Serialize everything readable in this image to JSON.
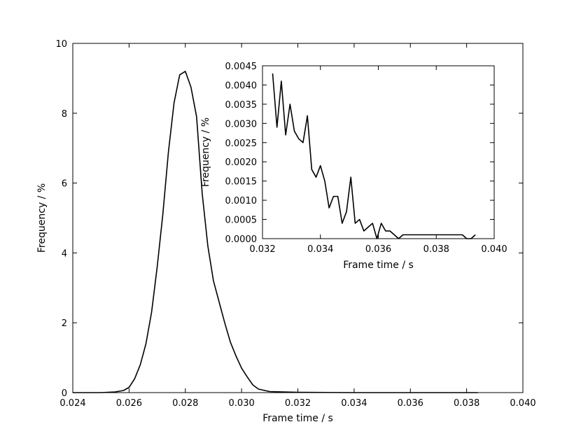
{
  "chart_data": [
    {
      "type": "line",
      "title": "",
      "xlabel": "Frame time / s",
      "ylabel": "Frequency / %",
      "xlim": [
        0.024,
        0.04
      ],
      "ylim": [
        0,
        10
      ],
      "xticks": [
        "0.024",
        "0.026",
        "0.028",
        "0.030",
        "0.032",
        "0.034",
        "0.036",
        "0.038",
        "0.040"
      ],
      "yticks": [
        "0",
        "2",
        "4",
        "6",
        "8",
        "10"
      ],
      "grid": false,
      "color": "#000000",
      "series": [
        {
          "x": [
            0.024,
            0.025,
            0.0255,
            0.0258,
            0.026,
            0.0262,
            0.0264,
            0.0266,
            0.0268,
            0.027,
            0.0272,
            0.0274,
            0.0276,
            0.0278,
            0.028,
            0.0282,
            0.0284,
            0.0286,
            0.0288,
            0.029,
            0.0292,
            0.0294,
            0.0296,
            0.0298,
            0.03,
            0.0302,
            0.0304,
            0.0306,
            0.031,
            0.032,
            0.034,
            0.036,
            0.0384
          ],
          "y": [
            0,
            0.0,
            0.02,
            0.06,
            0.15,
            0.4,
            0.8,
            1.4,
            2.3,
            3.6,
            5.1,
            6.9,
            8.3,
            9.1,
            9.2,
            8.75,
            7.9,
            5.7,
            4.2,
            3.2,
            2.6,
            2.0,
            1.45,
            1.05,
            0.7,
            0.45,
            0.22,
            0.1,
            0.03,
            0.01,
            0.0,
            0.0,
            0.0
          ]
        }
      ]
    },
    {
      "type": "line",
      "title": "",
      "xlabel": "Frame time / s",
      "ylabel": "Frequency / %",
      "xlim": [
        0.032,
        0.04
      ],
      "ylim": [
        0,
        0.0045
      ],
      "xticks": [
        "0.032",
        "0.034",
        "0.036",
        "0.038",
        "0.040"
      ],
      "yticks": [
        "0.0000",
        "0.0005",
        "0.0010",
        "0.0015",
        "0.0020",
        "0.0025",
        "0.0030",
        "0.0035",
        "0.0040",
        "0.0045"
      ],
      "grid": false,
      "color": "#000000",
      "series": [
        {
          "x": [
            0.03235,
            0.0325,
            0.03265,
            0.0328,
            0.03295,
            0.0331,
            0.03325,
            0.0334,
            0.03355,
            0.0337,
            0.03385,
            0.034,
            0.03415,
            0.0343,
            0.03445,
            0.0346,
            0.03475,
            0.0349,
            0.03505,
            0.0352,
            0.03535,
            0.0355,
            0.03565,
            0.0358,
            0.03595,
            0.0361,
            0.03625,
            0.0364,
            0.03655,
            0.0367,
            0.03685,
            0.0389,
            0.03905,
            0.0392,
            0.03935
          ],
          "y": [
            0.0043,
            0.0029,
            0.0041,
            0.0027,
            0.0035,
            0.0028,
            0.0026,
            0.0025,
            0.0032,
            0.0018,
            0.0016,
            0.0019,
            0.0015,
            0.0008,
            0.0011,
            0.0011,
            0.0004,
            0.0007,
            0.0016,
            0.0004,
            0.0005,
            0.0002,
            0.0003,
            0.0004,
            0.0,
            0.0004,
            0.0002,
            0.0002,
            0.0001,
            0.0,
            0.0001,
            0.0001,
            0.0,
            0.0,
            0.0001
          ]
        }
      ]
    }
  ]
}
